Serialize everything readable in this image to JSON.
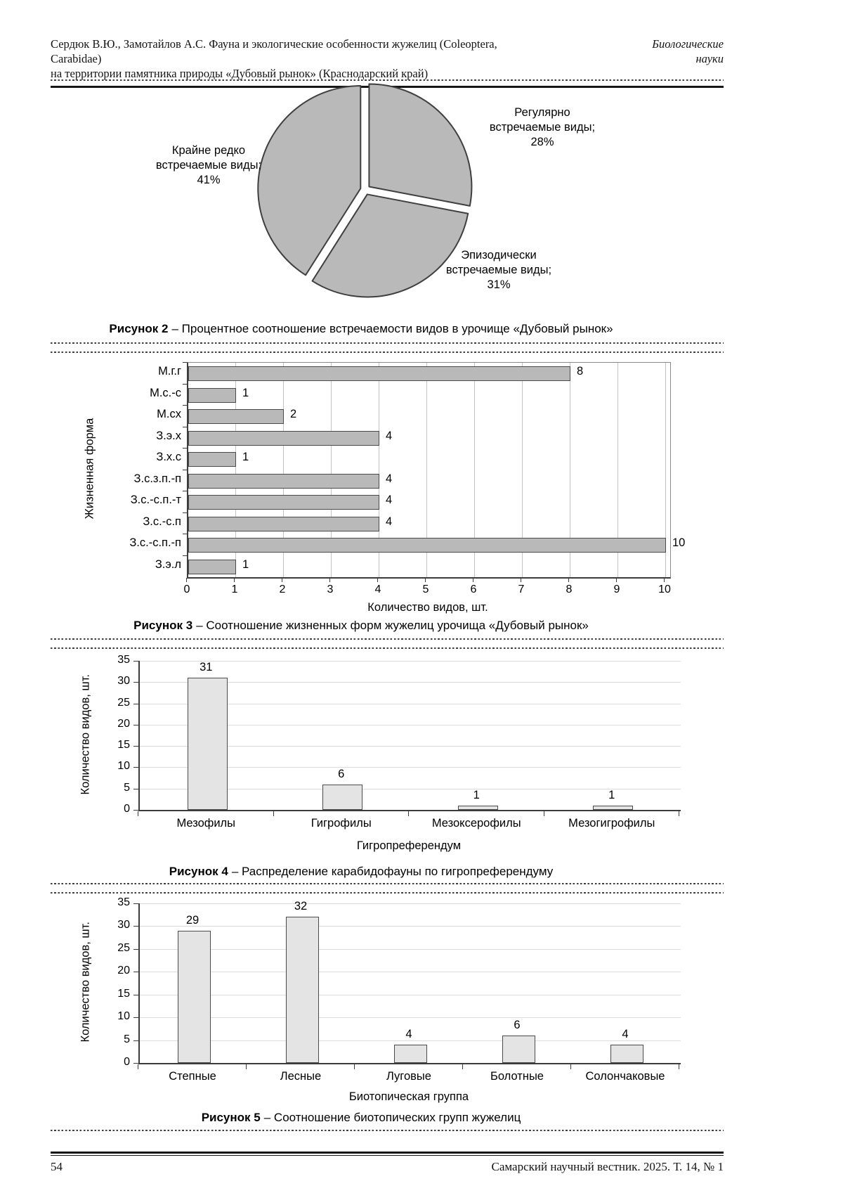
{
  "page": {
    "header": {
      "title_line1": "Сердюк В.Ю., Замотайлов А.С. Фауна и экологические особенности жужелиц (Coleoptera, Carabidae)",
      "title_line2": "на территории памятника природы «Дубовый рынок» (Краснодарский край)",
      "section_line1": "Биологические",
      "section_line2": "науки"
    },
    "footer": {
      "page_number": "54",
      "journal_ref": "Самарский научный вестник. 2025. Т. 14, № 1"
    }
  },
  "figures": [
    {
      "caption_label": "Рисунок 2",
      "caption_text": "– Процентное соотношение встречаемости видов в урочище «Дубовый рынок»"
    },
    {
      "caption_label": "Рисунок 3",
      "caption_text": "– Соотношение жизненных форм жужелиц урочища «Дубовый рынок»"
    },
    {
      "caption_label": "Рисунок 4",
      "caption_text": "– Распределение карабидофауны по гигропреферендуму"
    },
    {
      "caption_label": "Рисунок 5",
      "caption_text": "– Соотношение биотопических групп жужелиц"
    }
  ],
  "chart_data": [
    {
      "type": "pie",
      "labels": [
        "Регулярно встречаемые виды",
        "Эпизодически встречаемые виды",
        "Крайне редко встречаемые виды"
      ],
      "values": [
        28,
        31,
        41
      ],
      "display_labels": [
        [
          "Регулярно",
          "встречаемые виды;",
          "28%"
        ],
        [
          "Эпизодически",
          "встречаемые виды;",
          "31%"
        ],
        [
          "Крайне редко",
          "встречаемые виды;",
          "41%"
        ]
      ],
      "slice_color": "#b9b9b9",
      "slice_stroke": "#3f3f3f"
    },
    {
      "type": "bar",
      "orientation": "horizontal",
      "categories": [
        "М.г.г",
        "М.с.-с",
        "М.сх",
        "З.э.х",
        "З.х.с",
        "З.с.з.п.-п",
        "З.с.-с.п.-т",
        "З.с.-с.п",
        "З.с.-с.п.-п",
        "З.э.л"
      ],
      "values": [
        8,
        1,
        2,
        4,
        1,
        4,
        4,
        4,
        10,
        1
      ],
      "xlabel": "Количество видов, шт.",
      "ylabel": "Жизненная форма",
      "xlim": [
        0,
        10
      ],
      "xticks": [
        0,
        1,
        2,
        3,
        4,
        5,
        6,
        7,
        8,
        9,
        10
      ],
      "grid": "vertical",
      "bar_color": "#b9b9b9",
      "bar_stroke": "#4a4a4a"
    },
    {
      "type": "bar",
      "orientation": "vertical",
      "categories": [
        "Мезофилы",
        "Гигрофилы",
        "Мезоксерофилы",
        "Мезогигрофилы"
      ],
      "values": [
        31,
        6,
        1,
        1
      ],
      "xlabel": "Гигропреферендум",
      "ylabel": "Количество видов, шт.",
      "ylim": [
        0,
        35
      ],
      "yticks": [
        0,
        5,
        10,
        15,
        20,
        25,
        30,
        35
      ],
      "grid": "horizontal",
      "bar_color": "#e4e4e4",
      "bar_stroke": "#4a4a4a"
    },
    {
      "type": "bar",
      "orientation": "vertical",
      "categories": [
        "Степные",
        "Лесные",
        "Луговые",
        "Болотные",
        "Солончаковые"
      ],
      "values": [
        29,
        32,
        4,
        6,
        4
      ],
      "xlabel": "Биотопическая группа",
      "ylabel": "Количество видов, шт.",
      "ylim": [
        0,
        35
      ],
      "yticks": [
        0,
        5,
        10,
        15,
        20,
        25,
        30,
        35
      ],
      "grid": "horizontal",
      "bar_color": "#e4e4e4",
      "bar_stroke": "#4a4a4a"
    }
  ]
}
